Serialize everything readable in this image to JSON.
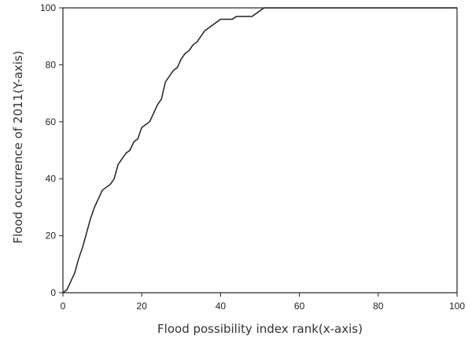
{
  "chart_data": {
    "type": "line",
    "xlabel": "Flood possibility index rank(x-axis)",
    "ylabel": "Flood occurrence  of 2011(Y-axis)",
    "xlim": [
      0,
      100
    ],
    "ylim": [
      0,
      100
    ],
    "xticks": [
      "0",
      "20",
      "40",
      "60",
      "80",
      "100"
    ],
    "yticks": [
      "0",
      "20",
      "40",
      "60",
      "80",
      "100"
    ],
    "grid": false,
    "series": [
      {
        "x": [
          0,
          1,
          2,
          3,
          4,
          5,
          6,
          7,
          8,
          9,
          10,
          11,
          12,
          13,
          14,
          15,
          16,
          17,
          18,
          19,
          20,
          21,
          22,
          23,
          24,
          25,
          26,
          27,
          28,
          29,
          30,
          31,
          32,
          33,
          34,
          35,
          36,
          37,
          38,
          39,
          40,
          41,
          42,
          43,
          44,
          45,
          46,
          47,
          48,
          49,
          50,
          51,
          52,
          60,
          70,
          80,
          90,
          100
        ],
        "y": [
          0,
          1,
          4,
          7,
          12,
          16,
          21,
          26,
          30,
          33,
          36,
          37,
          38,
          40,
          45,
          47,
          49,
          50,
          53,
          54,
          58,
          59,
          60,
          63,
          66,
          68,
          74,
          76,
          78,
          79,
          82,
          84,
          85,
          87,
          88,
          90,
          92,
          93,
          94,
          95,
          96,
          96,
          96,
          96,
          97,
          97,
          97,
          97,
          97,
          98,
          99,
          100,
          100,
          100,
          100,
          100,
          100,
          100
        ]
      }
    ]
  }
}
